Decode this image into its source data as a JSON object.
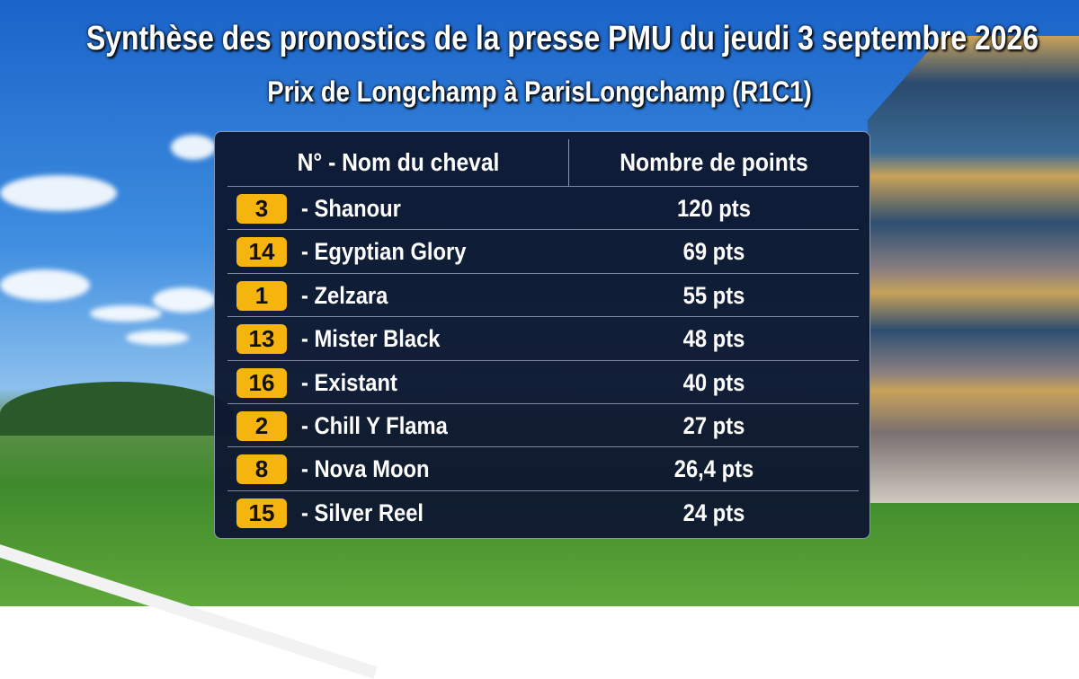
{
  "header": {
    "title": "Synthèse des pronostics de la presse PMU du jeudi 3 septembre 2026",
    "subtitle": "Prix de Longchamp à ParisLongchamp (R1C1)"
  },
  "table": {
    "columns": [
      "N° - Nom du cheval",
      "Nombre de points"
    ],
    "rows": [
      [
        "3",
        "- Shanour",
        "120 pts"
      ],
      [
        "14",
        "- Egyptian Glory",
        "69 pts"
      ],
      [
        "1",
        "- Zelzara",
        "55 pts"
      ],
      [
        "13",
        "- Mister Black",
        "48 pts"
      ],
      [
        "16",
        "- Existant",
        "40 pts"
      ],
      [
        "2",
        "- Chill Y Flama",
        "27 pts"
      ],
      [
        "8",
        "- Nova Moon",
        "26,4 pts"
      ],
      [
        "15",
        "- Silver Reel",
        "24 pts"
      ]
    ]
  }
}
